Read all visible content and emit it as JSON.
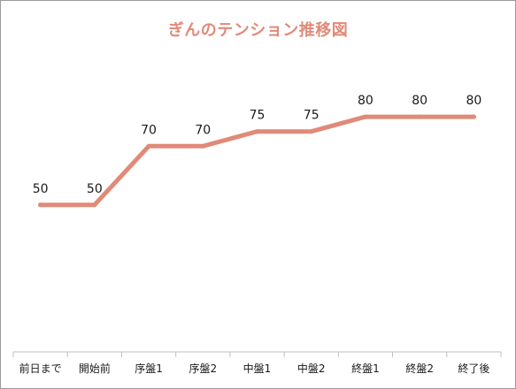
{
  "chart_data": {
    "type": "line",
    "title": "ぎんのテンション推移図",
    "xlabel": "",
    "ylabel": "",
    "categories": [
      "前日まで",
      "開始前",
      "序盤1",
      "序盤2",
      "中盤1",
      "中盤2",
      "終盤1",
      "終盤2",
      "終了後"
    ],
    "series": [
      {
        "values": [
          50,
          50,
          70,
          70,
          75,
          75,
          80,
          80,
          80
        ],
        "color": "#e08a78"
      }
    ],
    "ylim": [
      0,
      105
    ],
    "grid": false,
    "legend": "none",
    "data_labels": true
  }
}
